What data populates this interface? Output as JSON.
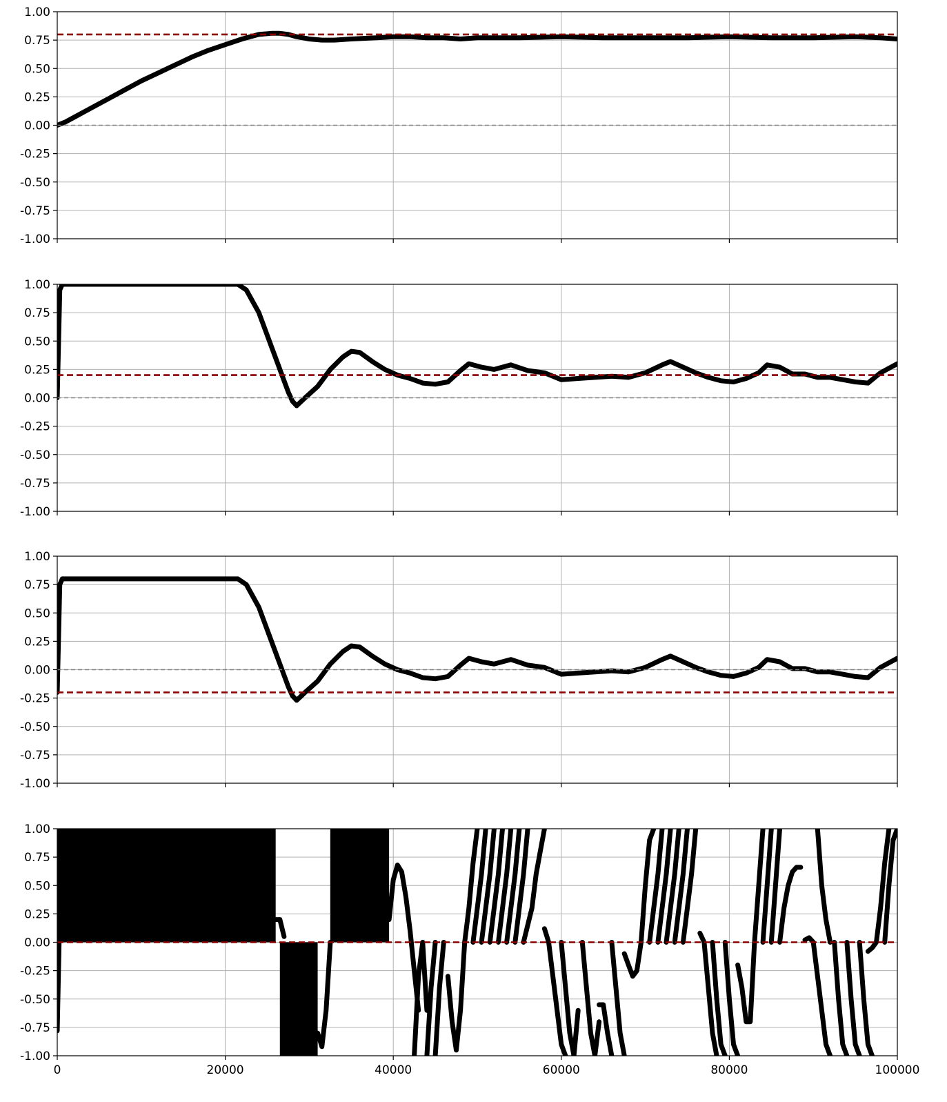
{
  "colors": {
    "series": "#000000",
    "target": "#8b0000",
    "zero": "#808080",
    "grid": "#b0b0b0"
  },
  "chart_data": [
    {
      "type": "line",
      "xlim": [
        0,
        100000
      ],
      "ylim": [
        -1.0,
        1.0
      ],
      "grid": true,
      "xticks": [
        0,
        20000,
        40000,
        60000,
        80000,
        100000
      ],
      "yticks": [
        "1.00",
        "0.75",
        "0.50",
        "0.25",
        "0.00",
        "-0.25",
        "-0.50",
        "-0.75",
        "-1.00"
      ],
      "reference_lines": [
        {
          "y": 0.8,
          "style": "dashed",
          "color": "#8b0000"
        },
        {
          "y": 0.0,
          "style": "dashed",
          "color": "#808080"
        }
      ],
      "series": [
        {
          "x": [
            0,
            1000,
            2000,
            4000,
            6000,
            8000,
            10000,
            12000,
            14000,
            16000,
            18000,
            20000,
            22000,
            24000,
            25500,
            26500,
            27500,
            28500,
            30000,
            31500,
            33000,
            35000,
            38000,
            40000,
            42000,
            44000,
            46000,
            48000,
            50000,
            55000,
            60000,
            65000,
            70000,
            75000,
            80000,
            85000,
            90000,
            95000,
            98000,
            100000
          ],
          "y": [
            0.0,
            0.03,
            0.07,
            0.15,
            0.23,
            0.31,
            0.39,
            0.46,
            0.53,
            0.6,
            0.66,
            0.71,
            0.76,
            0.8,
            0.81,
            0.81,
            0.8,
            0.78,
            0.76,
            0.75,
            0.75,
            0.76,
            0.77,
            0.78,
            0.78,
            0.77,
            0.77,
            0.76,
            0.77,
            0.77,
            0.78,
            0.77,
            0.77,
            0.77,
            0.78,
            0.77,
            0.77,
            0.78,
            0.77,
            0.76
          ]
        }
      ]
    },
    {
      "type": "line",
      "xlim": [
        0,
        100000
      ],
      "ylim": [
        -1.0,
        1.0
      ],
      "grid": true,
      "xticks": [
        0,
        20000,
        40000,
        60000,
        80000,
        100000
      ],
      "yticks": [
        "1.00",
        "0.75",
        "0.50",
        "0.25",
        "0.00",
        "-0.25",
        "-0.50",
        "-0.75",
        "-1.00"
      ],
      "reference_lines": [
        {
          "y": 0.2,
          "style": "dashed",
          "color": "#8b0000"
        },
        {
          "y": 0.0,
          "style": "dashed",
          "color": "#808080"
        }
      ],
      "series": [
        {
          "x": [
            0,
            300,
            600,
            5000,
            10000,
            15000,
            20000,
            21500,
            22500,
            24000,
            25500,
            26500,
            27500,
            28000,
            28500,
            29500,
            31000,
            32500,
            34000,
            35000,
            36000,
            37500,
            39000,
            40500,
            42000,
            43500,
            45000,
            46500,
            48000,
            49000,
            50500,
            52000,
            54000,
            56000,
            58000,
            60000,
            62000,
            64000,
            66000,
            68000,
            70000,
            72000,
            73000,
            74500,
            76000,
            77500,
            79000,
            80500,
            82000,
            83500,
            84500,
            86000,
            87500,
            89000,
            90500,
            92000,
            93500,
            95000,
            96500,
            98000,
            99000,
            100000
          ],
          "y": [
            0.0,
            0.95,
            1.0,
            1.0,
            1.0,
            1.0,
            1.0,
            1.0,
            0.95,
            0.75,
            0.45,
            0.25,
            0.05,
            -0.03,
            -0.07,
            0.0,
            0.1,
            0.25,
            0.36,
            0.41,
            0.4,
            0.32,
            0.25,
            0.2,
            0.17,
            0.13,
            0.12,
            0.14,
            0.24,
            0.3,
            0.27,
            0.25,
            0.29,
            0.24,
            0.22,
            0.16,
            0.17,
            0.18,
            0.19,
            0.18,
            0.22,
            0.29,
            0.32,
            0.27,
            0.22,
            0.18,
            0.15,
            0.14,
            0.17,
            0.22,
            0.29,
            0.27,
            0.21,
            0.21,
            0.18,
            0.18,
            0.16,
            0.14,
            0.13,
            0.22,
            0.26,
            0.3
          ]
        }
      ]
    },
    {
      "type": "line",
      "xlim": [
        0,
        100000
      ],
      "ylim": [
        -1.0,
        1.0
      ],
      "grid": true,
      "xticks": [
        0,
        20000,
        40000,
        60000,
        80000,
        100000
      ],
      "yticks": [
        "1.00",
        "0.75",
        "0.50",
        "0.25",
        "0.00",
        "-0.25",
        "-0.50",
        "-0.75",
        "-1.00"
      ],
      "reference_lines": [
        {
          "y": -0.2,
          "style": "dashed",
          "color": "#8b0000"
        },
        {
          "y": 0.0,
          "style": "dashed",
          "color": "#808080"
        }
      ],
      "series": [
        {
          "x": [
            0,
            300,
            600,
            5000,
            10000,
            15000,
            20000,
            21500,
            22500,
            24000,
            25500,
            26500,
            27500,
            28000,
            28500,
            29500,
            31000,
            32500,
            34000,
            35000,
            36000,
            37500,
            39000,
            40500,
            42000,
            43500,
            45000,
            46500,
            48000,
            49000,
            50500,
            52000,
            54000,
            56000,
            58000,
            60000,
            62000,
            64000,
            66000,
            68000,
            70000,
            72000,
            73000,
            74500,
            76000,
            77500,
            79000,
            80500,
            82000,
            83500,
            84500,
            86000,
            87500,
            89000,
            90500,
            92000,
            93500,
            95000,
            96500,
            98000,
            99000,
            100000
          ],
          "y": [
            -0.2,
            0.75,
            0.8,
            0.8,
            0.8,
            0.8,
            0.8,
            0.8,
            0.75,
            0.55,
            0.25,
            0.05,
            -0.15,
            -0.23,
            -0.27,
            -0.2,
            -0.1,
            0.05,
            0.16,
            0.21,
            0.2,
            0.12,
            0.05,
            0.0,
            -0.03,
            -0.07,
            -0.08,
            -0.06,
            0.04,
            0.1,
            0.07,
            0.05,
            0.09,
            0.04,
            0.02,
            -0.04,
            -0.03,
            -0.02,
            -0.01,
            -0.02,
            0.02,
            0.09,
            0.12,
            0.07,
            0.02,
            -0.02,
            -0.05,
            -0.06,
            -0.03,
            0.02,
            0.09,
            0.07,
            0.01,
            0.01,
            -0.02,
            -0.02,
            -0.04,
            -0.06,
            -0.07,
            0.02,
            0.06,
            0.1
          ]
        }
      ]
    },
    {
      "type": "line",
      "xlim": [
        0,
        100000
      ],
      "ylim": [
        -1.0,
        1.0
      ],
      "grid": true,
      "xticks": [
        0,
        20000,
        40000,
        60000,
        80000,
        100000
      ],
      "yticks": [
        "1.00",
        "0.75",
        "0.50",
        "0.25",
        "0.00",
        "-0.25",
        "-0.50",
        "-0.75",
        "-1.00"
      ],
      "reference_lines": [
        {
          "y": 0.0,
          "style": "dashed",
          "color": "#8b0000"
        }
      ],
      "filled_bands": [
        {
          "x0": 0,
          "x1": 26000,
          "y0": 0.0,
          "y1": 1.0
        },
        {
          "x0": 26500,
          "x1": 31000,
          "y0": -1.0,
          "y1": 0.0
        },
        {
          "x0": 32500,
          "x1": 39500,
          "y0": 0.0,
          "y1": 1.0
        }
      ],
      "series": [
        {
          "x": [
            0,
            300,
            600
          ],
          "y": [
            -0.78,
            0.3,
            1.0
          ]
        },
        {
          "x": [
            26000,
            26500,
            27000
          ],
          "y": [
            0.2,
            0.2,
            0.05
          ]
        },
        {
          "x": [
            31000,
            31500,
            32000,
            32500
          ],
          "y": [
            -0.8,
            -0.92,
            -0.6,
            0.0
          ]
        },
        {
          "x": [
            39500,
            40000,
            40500,
            41000,
            41500,
            42000,
            42500,
            43000
          ],
          "y": [
            0.2,
            0.55,
            0.68,
            0.62,
            0.4,
            0.1,
            -0.25,
            -0.6
          ]
        },
        {
          "x": [
            42500,
            43000,
            43500,
            44000
          ],
          "y": [
            -1.0,
            -0.3,
            0.0,
            -0.6
          ]
        },
        {
          "x": [
            44000,
            44500,
            45000
          ],
          "y": [
            -1.0,
            -0.4,
            0.0
          ]
        },
        {
          "x": [
            45000,
            45500,
            46000
          ],
          "y": [
            -1.0,
            -0.4,
            0.0
          ]
        },
        {
          "x": [
            46500,
            47000,
            47500,
            48000,
            48500
          ],
          "y": [
            -0.3,
            -0.7,
            -0.95,
            -0.6,
            0.0
          ]
        },
        {
          "x": [
            48500,
            49000,
            49500,
            50000
          ],
          "y": [
            0.0,
            0.3,
            0.7,
            1.0
          ]
        },
        {
          "x": [
            49500,
            50500,
            51000
          ],
          "y": [
            0.0,
            0.6,
            1.0
          ]
        },
        {
          "x": [
            50500,
            51500,
            52000
          ],
          "y": [
            0.0,
            0.6,
            1.0
          ]
        },
        {
          "x": [
            51500,
            52500,
            53000
          ],
          "y": [
            0.0,
            0.6,
            1.0
          ]
        },
        {
          "x": [
            52500,
            53500,
            54000
          ],
          "y": [
            0.0,
            0.6,
            1.0
          ]
        },
        {
          "x": [
            53500,
            54500,
            55000
          ],
          "y": [
            0.0,
            0.6,
            1.0
          ]
        },
        {
          "x": [
            54500,
            55500,
            56000
          ],
          "y": [
            0.0,
            0.6,
            1.0
          ]
        },
        {
          "x": [
            55500,
            56500,
            57000,
            57500,
            58000
          ],
          "y": [
            0.0,
            0.3,
            0.6,
            0.8,
            1.0
          ]
        },
        {
          "x": [
            58000,
            58500,
            59000,
            59500,
            60000,
            60500
          ],
          "y": [
            0.12,
            0.0,
            -0.3,
            -0.6,
            -0.9,
            -1.0
          ]
        },
        {
          "x": [
            60000,
            60500,
            61000,
            61500,
            62000
          ],
          "y": [
            0.0,
            -0.4,
            -0.8,
            -1.0,
            -0.6
          ]
        },
        {
          "x": [
            62500,
            63000,
            63500,
            64000,
            64500
          ],
          "y": [
            0.0,
            -0.4,
            -0.8,
            -1.0,
            -0.7
          ]
        },
        {
          "x": [
            64500,
            65000,
            65500,
            66000
          ],
          "y": [
            -0.55,
            -0.55,
            -0.8,
            -1.0
          ]
        },
        {
          "x": [
            66000,
            66500,
            67000,
            67500
          ],
          "y": [
            0.0,
            -0.4,
            -0.8,
            -1.0
          ]
        },
        {
          "x": [
            67500,
            68000,
            68500,
            69000,
            69500
          ],
          "y": [
            -0.1,
            -0.2,
            -0.3,
            -0.25,
            0.0
          ]
        },
        {
          "x": [
            69500,
            70000,
            70500,
            71000
          ],
          "y": [
            0.0,
            0.5,
            0.9,
            1.0
          ]
        },
        {
          "x": [
            70500,
            71500,
            72000
          ],
          "y": [
            0.0,
            0.6,
            1.0
          ]
        },
        {
          "x": [
            71500,
            72500,
            73000
          ],
          "y": [
            0.0,
            0.6,
            1.0
          ]
        },
        {
          "x": [
            72500,
            73500,
            74000
          ],
          "y": [
            0.0,
            0.6,
            1.0
          ]
        },
        {
          "x": [
            73500,
            74500,
            75000
          ],
          "y": [
            0.0,
            0.6,
            1.0
          ]
        },
        {
          "x": [
            74500,
            75500,
            76000
          ],
          "y": [
            0.0,
            0.6,
            1.0
          ]
        },
        {
          "x": [
            76500,
            77000,
            77500,
            78000,
            78500
          ],
          "y": [
            0.08,
            0.0,
            -0.4,
            -0.8,
            -1.0
          ]
        },
        {
          "x": [
            78000,
            78500,
            79000,
            79500
          ],
          "y": [
            0.0,
            -0.5,
            -0.9,
            -1.0
          ]
        },
        {
          "x": [
            79500,
            80000,
            80500,
            81000
          ],
          "y": [
            0.0,
            -0.5,
            -0.9,
            -1.0
          ]
        },
        {
          "x": [
            81000,
            81500,
            82000,
            82500,
            83000
          ],
          "y": [
            -0.2,
            -0.4,
            -0.7,
            -0.7,
            0.0
          ]
        },
        {
          "x": [
            83000,
            83500,
            84000
          ],
          "y": [
            0.0,
            0.5,
            1.0
          ]
        },
        {
          "x": [
            84000,
            84500,
            85000
          ],
          "y": [
            0.0,
            0.5,
            1.0
          ]
        },
        {
          "x": [
            85000,
            85500,
            86000
          ],
          "y": [
            0.0,
            0.5,
            1.0
          ]
        },
        {
          "x": [
            86000,
            86500,
            87000,
            87500,
            88000,
            88500
          ],
          "y": [
            0.0,
            0.3,
            0.5,
            0.62,
            0.66,
            0.66
          ]
        },
        {
          "x": [
            89000,
            89500,
            90000,
            90500,
            91000,
            91500,
            92000
          ],
          "y": [
            0.02,
            0.04,
            0.0,
            -0.3,
            -0.6,
            -0.9,
            -1.0
          ]
        },
        {
          "x": [
            90500,
            91000,
            91500,
            92000
          ],
          "y": [
            1.0,
            0.5,
            0.2,
            0.0
          ]
        },
        {
          "x": [
            92500,
            93000,
            93500,
            94000
          ],
          "y": [
            0.0,
            -0.5,
            -0.9,
            -1.0
          ]
        },
        {
          "x": [
            94000,
            94500,
            95000,
            95500
          ],
          "y": [
            0.0,
            -0.5,
            -0.9,
            -1.0
          ]
        },
        {
          "x": [
            95500,
            96000,
            96500,
            97000
          ],
          "y": [
            0.0,
            -0.5,
            -0.9,
            -1.0
          ]
        },
        {
          "x": [
            96500,
            97000,
            97500,
            98000,
            98500,
            99000
          ],
          "y": [
            -0.08,
            -0.05,
            0.0,
            0.3,
            0.7,
            1.0
          ]
        },
        {
          "x": [
            98500,
            99000,
            99500,
            100000
          ],
          "y": [
            0.0,
            0.5,
            0.9,
            1.0
          ]
        }
      ]
    }
  ]
}
